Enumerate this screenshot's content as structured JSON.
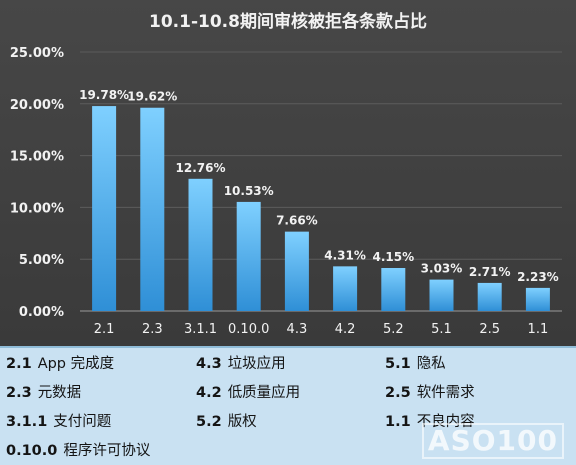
{
  "chart_data": {
    "type": "bar",
    "title": "10.1-10.8期间审核被拒各条款占比",
    "categories": [
      "2.1",
      "2.3",
      "3.1.1",
      "0.10.0",
      "4.3",
      "4.2",
      "5.2",
      "5.1",
      "2.5",
      "1.1"
    ],
    "values": [
      19.78,
      19.62,
      12.76,
      10.53,
      7.66,
      4.31,
      4.15,
      3.03,
      2.71,
      2.23
    ],
    "value_labels": [
      "19.78%",
      "19.62%",
      "12.76%",
      "10.53%",
      "7.66%",
      "4.31%",
      "4.15%",
      "3.03%",
      "2.71%",
      "2.23%"
    ],
    "ylim": [
      0,
      25
    ],
    "yticks": [
      0,
      5,
      10,
      15,
      20,
      25
    ],
    "ytick_labels": [
      "0.00%",
      "5.00%",
      "10.00%",
      "15.00%",
      "20.00%",
      "25.00%"
    ],
    "grid": true,
    "xlabel": "",
    "ylabel": ""
  },
  "colors": {
    "background": "#424242",
    "bar_top": "#7fd0ff",
    "bar_bottom": "#2f8fd6",
    "text": "#f2f2f2",
    "legend_background": "#c9e1f2"
  },
  "legend": [
    {
      "code": "2.1",
      "label": "App 完成度"
    },
    {
      "code": "2.3",
      "label": "元数据"
    },
    {
      "code": "3.1.1",
      "label": "支付问题"
    },
    {
      "code": "0.10.0",
      "label": "程序许可协议"
    },
    {
      "code": "4.3",
      "label": "垃圾应用"
    },
    {
      "code": "4.2",
      "label": "低质量应用"
    },
    {
      "code": "5.2",
      "label": "版权"
    },
    {
      "code": "5.1",
      "label": "隐私"
    },
    {
      "code": "2.5",
      "label": "软件需求"
    },
    {
      "code": "1.1",
      "label": "不良内容"
    }
  ],
  "watermark": "ASO100"
}
